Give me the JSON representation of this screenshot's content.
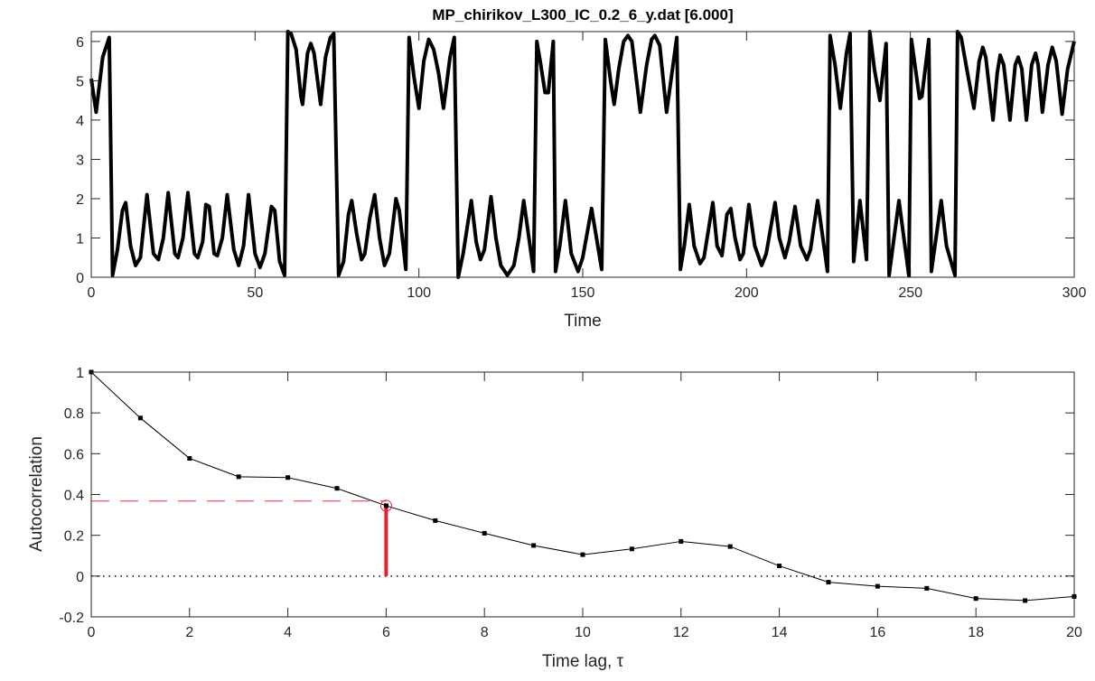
{
  "chart_data": [
    {
      "type": "line",
      "title": "MP_chirikov_L300_IC_0.2_6_y.dat [6.000]",
      "xlabel": "Time",
      "ylabel": "",
      "xlim": [
        0,
        300
      ],
      "ylim": [
        0,
        6.25
      ],
      "xticks": [
        0,
        50,
        100,
        150,
        200,
        250,
        300
      ],
      "xtick_labels": [
        "0",
        "50",
        "100",
        "150",
        "200",
        "250",
        "300"
      ],
      "yticks": [
        0,
        1,
        2,
        3,
        4,
        5,
        6
      ],
      "ytick_labels": [
        "0",
        "1",
        "2",
        "3",
        "4",
        "5",
        "6"
      ],
      "line_color": "#000000",
      "series_points": [
        [
          0,
          5.05
        ],
        [
          1.5,
          4.2
        ],
        [
          3.5,
          5.6
        ],
        [
          5.5,
          6.1
        ],
        [
          6.5,
          0.05
        ],
        [
          8,
          0.7
        ],
        [
          9.5,
          1.7
        ],
        [
          10.5,
          1.9
        ],
        [
          12,
          0.8
        ],
        [
          13.5,
          0.3
        ],
        [
          15,
          0.5
        ],
        [
          17,
          2.1
        ],
        [
          19,
          0.6
        ],
        [
          20.5,
          0.45
        ],
        [
          22,
          1.0
        ],
        [
          23.5,
          2.15
        ],
        [
          25.5,
          0.6
        ],
        [
          26.5,
          0.5
        ],
        [
          28,
          1.0
        ],
        [
          29.5,
          2.15
        ],
        [
          31.5,
          0.6
        ],
        [
          32.5,
          0.5
        ],
        [
          34,
          0.9
        ],
        [
          35,
          1.85
        ],
        [
          36,
          1.8
        ],
        [
          37.5,
          0.6
        ],
        [
          38.5,
          0.55
        ],
        [
          40,
          1.0
        ],
        [
          41.5,
          2.1
        ],
        [
          43.5,
          0.7
        ],
        [
          45,
          0.3
        ],
        [
          46.5,
          0.8
        ],
        [
          48,
          2.1
        ],
        [
          50,
          0.6
        ],
        [
          51.5,
          0.25
        ],
        [
          53,
          0.6
        ],
        [
          55,
          1.8
        ],
        [
          56,
          1.7
        ],
        [
          57.5,
          0.4
        ],
        [
          59,
          0.05
        ],
        [
          60,
          6.25
        ],
        [
          61,
          6.2
        ],
        [
          62.5,
          5.8
        ],
        [
          64,
          4.6
        ],
        [
          64.5,
          4.4
        ],
        [
          66,
          5.7
        ],
        [
          67,
          5.95
        ],
        [
          68,
          5.7
        ],
        [
          70,
          4.4
        ],
        [
          71.5,
          5.6
        ],
        [
          73,
          6.1
        ],
        [
          74,
          6.2
        ],
        [
          75.5,
          0.05
        ],
        [
          77,
          0.4
        ],
        [
          78.5,
          1.6
        ],
        [
          79.5,
          1.95
        ],
        [
          81,
          1.1
        ],
        [
          82.5,
          0.45
        ],
        [
          83.5,
          0.6
        ],
        [
          85,
          1.5
        ],
        [
          86.5,
          2.1
        ],
        [
          88,
          1.0
        ],
        [
          89.5,
          0.3
        ],
        [
          91,
          0.6
        ],
        [
          93,
          2.0
        ],
        [
          94,
          1.7
        ],
        [
          96,
          0.2
        ],
        [
          97,
          6.1
        ],
        [
          98.5,
          5.1
        ],
        [
          100,
          4.3
        ],
        [
          101.5,
          5.5
        ],
        [
          103,
          6.05
        ],
        [
          104.5,
          5.8
        ],
        [
          106,
          5.2
        ],
        [
          107.5,
          4.3
        ],
        [
          109.5,
          5.6
        ],
        [
          110.8,
          6.1
        ],
        [
          112,
          0.0
        ],
        [
          113.5,
          0.6
        ],
        [
          116,
          1.95
        ],
        [
          117.5,
          0.9
        ],
        [
          118.8,
          0.45
        ],
        [
          120,
          0.7
        ],
        [
          122,
          2.05
        ],
        [
          123.5,
          1.0
        ],
        [
          125,
          0.3
        ],
        [
          127,
          0.05
        ],
        [
          129,
          0.3
        ],
        [
          130.5,
          1.0
        ],
        [
          132,
          1.95
        ],
        [
          135,
          0.15
        ],
        [
          136,
          6.0
        ],
        [
          137,
          5.5
        ],
        [
          138.5,
          4.7
        ],
        [
          139.5,
          4.7
        ],
        [
          141,
          6.0
        ],
        [
          141.7,
          0.15
        ],
        [
          143,
          0.8
        ],
        [
          144.7,
          1.95
        ],
        [
          146.5,
          0.6
        ],
        [
          148.6,
          0.15
        ],
        [
          150,
          0.5
        ],
        [
          152.7,
          1.75
        ],
        [
          155.8,
          0.2
        ],
        [
          156.9,
          6.05
        ],
        [
          158.5,
          5.0
        ],
        [
          159.6,
          4.4
        ],
        [
          161,
          5.3
        ],
        [
          162.5,
          6.0
        ],
        [
          163.8,
          6.15
        ],
        [
          165,
          6.0
        ],
        [
          167.6,
          4.2
        ],
        [
          169.5,
          5.4
        ],
        [
          171,
          6.05
        ],
        [
          172,
          6.15
        ],
        [
          173.5,
          5.9
        ],
        [
          175.6,
          4.2
        ],
        [
          178.7,
          6.1
        ],
        [
          179.8,
          0.2
        ],
        [
          181,
          0.8
        ],
        [
          182.5,
          1.85
        ],
        [
          184,
          0.8
        ],
        [
          185.8,
          0.35
        ],
        [
          187,
          0.5
        ],
        [
          189.7,
          1.9
        ],
        [
          191,
          0.8
        ],
        [
          192.5,
          0.55
        ],
        [
          194,
          1.6
        ],
        [
          195.2,
          1.75
        ],
        [
          196.5,
          1.0
        ],
        [
          198,
          0.45
        ],
        [
          199,
          0.6
        ],
        [
          200.7,
          1.85
        ],
        [
          202.5,
          0.8
        ],
        [
          204.6,
          0.3
        ],
        [
          206,
          0.6
        ],
        [
          208.7,
          1.9
        ],
        [
          210,
          1.0
        ],
        [
          211.7,
          0.5
        ],
        [
          213,
          0.9
        ],
        [
          214.8,
          1.8
        ],
        [
          216.5,
          0.8
        ],
        [
          218.4,
          0.45
        ],
        [
          219.5,
          0.7
        ],
        [
          221.7,
          1.95
        ],
        [
          224.7,
          0.15
        ],
        [
          225.5,
          6.15
        ],
        [
          227,
          5.4
        ],
        [
          228.6,
          4.3
        ],
        [
          230.5,
          5.7
        ],
        [
          231.6,
          6.2
        ],
        [
          232.7,
          0.4
        ],
        [
          234.6,
          1.95
        ],
        [
          236.6,
          0.45
        ],
        [
          237.6,
          6.25
        ],
        [
          239,
          5.3
        ],
        [
          240.7,
          4.5
        ],
        [
          242.6,
          5.95
        ],
        [
          243.5,
          0.05
        ],
        [
          246.5,
          1.95
        ],
        [
          249.5,
          0.05
        ],
        [
          250.3,
          6.05
        ],
        [
          252.8,
          4.55
        ],
        [
          253.5,
          4.6
        ],
        [
          255.6,
          6.05
        ],
        [
          256.4,
          0.15
        ],
        [
          259.4,
          1.95
        ],
        [
          261,
          0.8
        ],
        [
          263.6,
          0.05
        ],
        [
          264.4,
          6.25
        ],
        [
          265.5,
          6.1
        ],
        [
          267,
          5.4
        ],
        [
          269.4,
          4.3
        ],
        [
          271,
          5.5
        ],
        [
          272.1,
          5.85
        ],
        [
          273,
          5.6
        ],
        [
          275.2,
          4.0
        ],
        [
          276.5,
          5.2
        ],
        [
          277.4,
          5.65
        ],
        [
          278.5,
          5.4
        ],
        [
          280.4,
          4.0
        ],
        [
          282,
          5.4
        ],
        [
          282.9,
          5.6
        ],
        [
          284,
          5.3
        ],
        [
          285.4,
          4.0
        ],
        [
          287,
          5.4
        ],
        [
          288.2,
          5.7
        ],
        [
          289,
          5.4
        ],
        [
          290.3,
          4.2
        ],
        [
          292,
          5.4
        ],
        [
          293.3,
          5.85
        ],
        [
          294.5,
          5.5
        ],
        [
          296.3,
          4.15
        ],
        [
          298,
          5.3
        ],
        [
          300,
          6.0
        ]
      ]
    },
    {
      "type": "line",
      "title": "",
      "xlabel": "Time lag, τ",
      "ylabel": "Autocorrelation",
      "xlim": [
        0,
        20
      ],
      "ylim": [
        -0.2,
        1
      ],
      "xticks": [
        0,
        2,
        4,
        6,
        8,
        10,
        12,
        14,
        16,
        18,
        20
      ],
      "xtick_labels": [
        "0",
        "2",
        "4",
        "6",
        "8",
        "10",
        "12",
        "14",
        "16",
        "18",
        "20"
      ],
      "yticks": [
        -0.2,
        0,
        0.2,
        0.4,
        0.6,
        0.8,
        1
      ],
      "ytick_labels": [
        "-0.2",
        "0",
        "0.2",
        "0.4",
        "0.6",
        "0.8",
        "1"
      ],
      "x": [
        0,
        1,
        2,
        3,
        4,
        5,
        6,
        7,
        8,
        9,
        10,
        11,
        12,
        13,
        14,
        15,
        16,
        17,
        18,
        19,
        20
      ],
      "values": [
        1.0,
        0.775,
        0.577,
        0.487,
        0.483,
        0.43,
        0.345,
        0.272,
        0.21,
        0.15,
        0.105,
        0.133,
        0.17,
        0.145,
        0.05,
        -0.03,
        -0.05,
        -0.06,
        -0.11,
        -0.12,
        -0.1
      ],
      "zero_line": 0,
      "threshold_line": {
        "y": 0.368,
        "x_end": 6,
        "color": "#e03030"
      },
      "highlight": {
        "x": 6,
        "y": 0.345,
        "color": "#e8202a"
      }
    }
  ]
}
